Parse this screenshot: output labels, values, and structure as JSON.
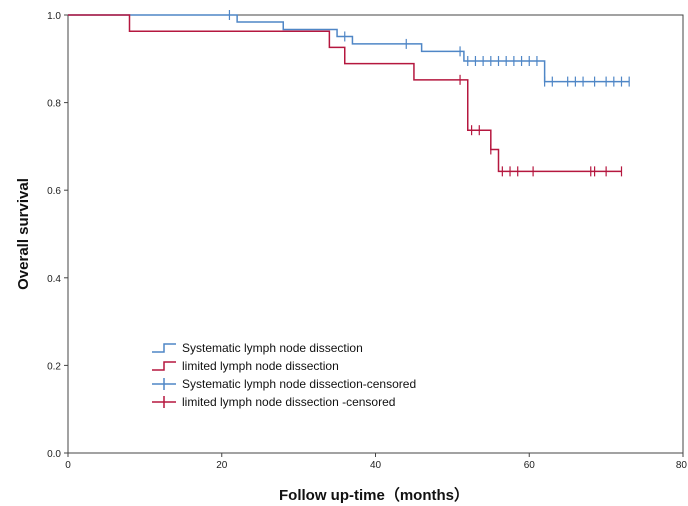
{
  "chart_data": {
    "type": "line",
    "subtype": "kaplan-meier-step",
    "title": "",
    "xlabel": "Follow up-time（months）",
    "ylabel": "Overall survival",
    "xlim": [
      0,
      80
    ],
    "ylim": [
      0.0,
      1.0
    ],
    "x_ticks": [
      "0",
      "20",
      "40",
      "60",
      "80"
    ],
    "y_ticks": [
      "0.0",
      "0.2",
      "0.4",
      "0.6",
      "0.8",
      "1.0"
    ],
    "grid": false,
    "legend_position": "bottom-left",
    "legend": [
      "Systematic lymph node dissection",
      "limited lymph node dissection",
      "Systematic lymph node dissection-censored",
      "limited lymph node dissection -censored"
    ],
    "series": [
      {
        "name": "Systematic lymph node dissection",
        "color": "#4f86c6",
        "steps": [
          {
            "x": 0,
            "y": 1.0
          },
          {
            "x": 22,
            "y": 0.984
          },
          {
            "x": 28,
            "y": 0.967
          },
          {
            "x": 35,
            "y": 0.951
          },
          {
            "x": 37,
            "y": 0.934
          },
          {
            "x": 46,
            "y": 0.917
          },
          {
            "x": 51.5,
            "y": 0.895
          },
          {
            "x": 62,
            "y": 0.848
          }
        ],
        "end_x": 73,
        "censored": [
          21,
          36,
          44,
          51,
          52,
          53,
          54,
          55,
          56,
          57,
          58,
          59,
          60,
          61,
          62,
          63,
          65,
          66,
          67,
          68.5,
          70,
          71,
          72,
          73
        ]
      },
      {
        "name": "limited lymph node dissection",
        "color": "#b5173f",
        "steps": [
          {
            "x": 0,
            "y": 1.0
          },
          {
            "x": 8,
            "y": 0.963
          },
          {
            "x": 34,
            "y": 0.926
          },
          {
            "x": 36,
            "y": 0.889
          },
          {
            "x": 45,
            "y": 0.852
          },
          {
            "x": 52,
            "y": 0.737
          },
          {
            "x": 55,
            "y": 0.693
          },
          {
            "x": 56,
            "y": 0.643
          }
        ],
        "end_x": 72,
        "censored": [
          51,
          52.5,
          53.5,
          55,
          56.5,
          57.5,
          58.5,
          60.5,
          68,
          68.5,
          70,
          72
        ]
      }
    ]
  }
}
